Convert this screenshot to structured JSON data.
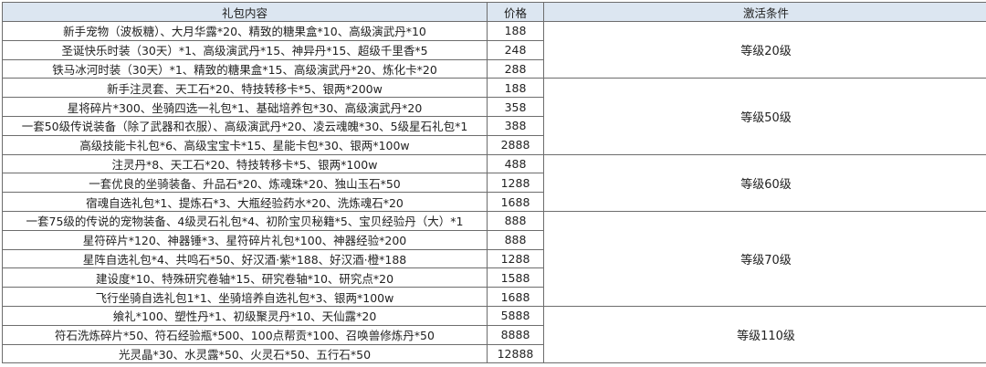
{
  "header": {
    "content": "礼包内容",
    "price": "价格",
    "condition": "激活条件"
  },
  "rows": [
    {
      "content": "新手宠物（波板糖）、大月华露*20、精致的糖果盒*10、高级演武丹*10",
      "price": "188"
    },
    {
      "content": "圣诞快乐时装（30天）*1、高级演武丹*15、神异丹*15、超级千里香*5",
      "price": "248"
    },
    {
      "content": "铁马冰河时装（30天）*1、精致的糖果盒*15、高级演武丹*20、炼化卡*20",
      "price": "288"
    },
    {
      "content": "新手注灵套、天工石*20、特技转移卡*5、银两*200w",
      "price": "188"
    },
    {
      "content": "星将碎片*300、坐骑四选一礼包*1、基础培养包*30、高级演武丹*20",
      "price": "358"
    },
    {
      "content": "一套50级传说装备（除了武器和衣服）、高级演武丹*20、凌云魂魄*30、5级星石礼包*1",
      "price": "388"
    },
    {
      "content": "高级技能卡礼包*6、高级宝宝卡*15、星能卡包*30、银两*100w",
      "price": "2888"
    },
    {
      "content": "注灵丹*8、天工石*20、特技转移卡*5、银两*100w",
      "price": "488"
    },
    {
      "content": "一套优良的坐骑装备、升品石*20、炼魂珠*20、独山玉石*50",
      "price": "1288"
    },
    {
      "content": "宿魂自选礼包*1、提炼石*3、大瓶经验药水*20、洗炼魂石*20",
      "price": "1688"
    },
    {
      "content": "一套75级的传说的宠物装备、4级灵石礼包*4、初阶宝贝秘籍*5、宝贝经验丹（大）*1",
      "price": "888"
    },
    {
      "content": "星符碎片*120、神器锤*3、星符碎片礼包*100、神器经验*200",
      "price": "888"
    },
    {
      "content": "星阵自选礼包*4、共鸣石*50、好汉酒·紫*188、好汉酒·橙*188",
      "price": "1288"
    },
    {
      "content": "建设度*10、特殊研究卷轴*15、研究卷轴*10、研究点*20",
      "price": "1588"
    },
    {
      "content": "飞行坐骑自选礼包1*1、坐骑培养自选礼包*3、银两*100w",
      "price": "1688"
    },
    {
      "content": "飨礼*100、塑性丹*1、初级聚灵丹*10、天仙露*20",
      "price": "5888"
    },
    {
      "content": "符石洗炼碎片*50、符石经验瓶*500、100点帮贡*100、召唤兽修炼丹*50",
      "price": "8888"
    },
    {
      "content": "光灵晶*30、水灵露*50、火灵石*50、五行石*50",
      "price": "12888"
    }
  ],
  "conditions": [
    {
      "label": "等级20级",
      "rows": 3
    },
    {
      "label": "等级50级",
      "rows": 4
    },
    {
      "label": "等级60级",
      "rows": 3
    },
    {
      "label": "等级70级",
      "rows": 5
    },
    {
      "label": "等级110级",
      "rows": 3
    }
  ],
  "colors": {
    "header_bg": "#dce6f1",
    "border": "#6d6d6d"
  }
}
